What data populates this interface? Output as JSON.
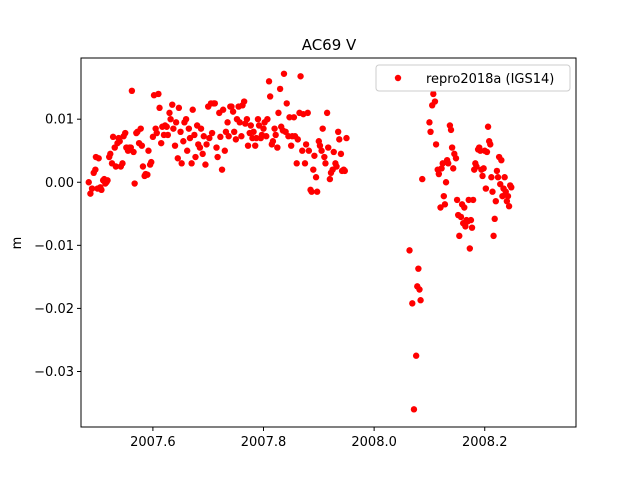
{
  "chart_data": {
    "type": "scatter",
    "title": "AC69 V",
    "xlabel": "",
    "ylabel": "m",
    "xlim": [
      2007.47,
      2008.365
    ],
    "ylim": [
      -0.0388,
      0.0197
    ],
    "x_ticks": [
      {
        "value": 2007.6,
        "label": "2007.6"
      },
      {
        "value": 2007.8,
        "label": "2007.8"
      },
      {
        "value": 2008.0,
        "label": "2008.0"
      },
      {
        "value": 2008.2,
        "label": "2008.2"
      }
    ],
    "y_ticks": [
      {
        "value": 0.01,
        "label": "0.01"
      },
      {
        "value": 0.0,
        "label": "0.00"
      },
      {
        "value": -0.01,
        "label": "−0.01"
      },
      {
        "value": -0.02,
        "label": "−0.02"
      },
      {
        "value": -0.03,
        "label": "−0.03"
      }
    ],
    "grid": false,
    "legend": {
      "placement": "top-right"
    },
    "series": [
      {
        "name": "repro2018a (IGS14)",
        "color": "#ff0000",
        "points": [
          [
            2007.484,
            0.0
          ],
          [
            2007.487,
            -0.0018
          ],
          [
            2007.49,
            -0.001
          ],
          [
            2007.493,
            0.0015
          ],
          [
            2007.496,
            0.002
          ],
          [
            2007.497,
            0.004
          ],
          [
            2007.5,
            -0.001
          ],
          [
            2007.502,
            0.0038
          ],
          [
            2007.505,
            -0.0008
          ],
          [
            2007.507,
            -0.0012
          ],
          [
            2007.51,
            0.0003
          ],
          [
            2007.512,
            0.0005
          ],
          [
            2007.514,
            -0.0002
          ],
          [
            2007.516,
            0.0
          ],
          [
            2007.518,
            0.0003
          ],
          [
            2007.521,
            0.004
          ],
          [
            2007.523,
            0.0045
          ],
          [
            2007.526,
            0.003
          ],
          [
            2007.528,
            0.0072
          ],
          [
            2007.531,
            0.0055
          ],
          [
            2007.533,
            0.0025
          ],
          [
            2007.536,
            0.0062
          ],
          [
            2007.538,
            0.007
          ],
          [
            2007.54,
            0.0065
          ],
          [
            2007.542,
            0.0025
          ],
          [
            2007.545,
            0.003
          ],
          [
            2007.547,
            0.0073
          ],
          [
            2007.55,
            0.0078
          ],
          [
            2007.552,
            0.0055
          ],
          [
            2007.555,
            0.005
          ],
          [
            2007.558,
            0.0055
          ],
          [
            2007.56,
            0.0055
          ],
          [
            2007.562,
            0.0145
          ],
          [
            2007.565,
            0.0048
          ],
          [
            2007.567,
            -0.0002
          ],
          [
            2007.57,
            0.0078
          ],
          [
            2007.572,
            0.008
          ],
          [
            2007.575,
            0.0062
          ],
          [
            2007.578,
            0.0085
          ],
          [
            2007.58,
            0.0058
          ],
          [
            2007.582,
            0.0025
          ],
          [
            2007.585,
            0.001
          ],
          [
            2007.587,
            0.0013
          ],
          [
            2007.59,
            0.0012
          ],
          [
            2007.592,
            0.005
          ],
          [
            2007.595,
            0.0028
          ],
          [
            2007.597,
            0.0032
          ],
          [
            2007.6,
            0.0072
          ],
          [
            2007.602,
            0.0138
          ],
          [
            2007.605,
            0.0085
          ],
          [
            2007.607,
            0.0078
          ],
          [
            2007.61,
            0.014
          ],
          [
            2007.612,
            0.0118
          ],
          [
            2007.615,
            0.0062
          ],
          [
            2007.617,
            0.0088
          ],
          [
            2007.62,
            0.0075
          ],
          [
            2007.622,
            0.009
          ],
          [
            2007.625,
            0.0088
          ],
          [
            2007.627,
            0.0075
          ],
          [
            2007.63,
            0.011
          ],
          [
            2007.632,
            0.01
          ],
          [
            2007.635,
            0.0123
          ],
          [
            2007.637,
            0.0085
          ],
          [
            2007.64,
            0.0058
          ],
          [
            2007.642,
            0.0095
          ],
          [
            2007.645,
            0.0038
          ],
          [
            2007.647,
            0.0118
          ],
          [
            2007.65,
            0.008
          ],
          [
            2007.652,
            0.003
          ],
          [
            2007.655,
            0.0065
          ],
          [
            2007.657,
            0.0095
          ],
          [
            2007.66,
            0.01
          ],
          [
            2007.662,
            0.005
          ],
          [
            2007.665,
            0.0085
          ],
          [
            2007.667,
            0.007
          ],
          [
            2007.67,
            0.003
          ],
          [
            2007.672,
            0.0115
          ],
          [
            2007.675,
            0.0075
          ],
          [
            2007.677,
            0.004
          ],
          [
            2007.68,
            0.009
          ],
          [
            2007.682,
            0.006
          ],
          [
            2007.685,
            0.0055
          ],
          [
            2007.687,
            0.0085
          ],
          [
            2007.69,
            0.0045
          ],
          [
            2007.692,
            0.0073
          ],
          [
            2007.695,
            0.0028
          ],
          [
            2007.697,
            0.006
          ],
          [
            2007.7,
            0.012
          ],
          [
            2007.702,
            0.007
          ],
          [
            2007.705,
            0.0125
          ],
          [
            2007.707,
            0.0078
          ],
          [
            2007.71,
            0.0125
          ],
          [
            2007.712,
            0.0125
          ],
          [
            2007.715,
            0.0055
          ],
          [
            2007.717,
            0.004
          ],
          [
            2007.72,
            0.011
          ],
          [
            2007.722,
            0.0072
          ],
          [
            2007.725,
            0.002
          ],
          [
            2007.727,
            0.0115
          ],
          [
            2007.73,
            0.005
          ],
          [
            2007.732,
            0.008
          ],
          [
            2007.735,
            0.0095
          ],
          [
            2007.737,
            0.0073
          ],
          [
            2007.74,
            0.012
          ],
          [
            2007.742,
            0.012
          ],
          [
            2007.745,
            0.0112
          ],
          [
            2007.747,
            0.008
          ],
          [
            2007.75,
            0.0068
          ],
          [
            2007.752,
            0.01
          ],
          [
            2007.755,
            0.012
          ],
          [
            2007.757,
            0.0095
          ],
          [
            2007.76,
            0.0073
          ],
          [
            2007.762,
            0.0122
          ],
          [
            2007.765,
            0.0128
          ],
          [
            2007.767,
            0.0093
          ],
          [
            2007.77,
            0.01
          ],
          [
            2007.772,
            0.0058
          ],
          [
            2007.775,
            0.0078
          ],
          [
            2007.777,
            0.009
          ],
          [
            2007.78,
            0.007
          ],
          [
            2007.782,
            0.008
          ],
          [
            2007.785,
            0.0058
          ],
          [
            2007.787,
            0.007
          ],
          [
            2007.79,
            0.01
          ],
          [
            2007.792,
            0.009
          ],
          [
            2007.795,
            0.007
          ],
          [
            2007.797,
            0.0075
          ],
          [
            2007.8,
            0.0085
          ],
          [
            2007.802,
            0.0095
          ],
          [
            2007.805,
            0.0073
          ],
          [
            2007.807,
            0.01
          ],
          [
            2007.81,
            0.016
          ],
          [
            2007.812,
            0.0136
          ],
          [
            2007.815,
            0.006
          ],
          [
            2007.817,
            0.0065
          ],
          [
            2007.82,
            0.0085
          ],
          [
            2007.822,
            0.0075
          ],
          [
            2007.825,
            0.0055
          ],
          [
            2007.827,
            0.011
          ],
          [
            2007.83,
            0.0148
          ],
          [
            2007.832,
            0.0088
          ],
          [
            2007.835,
            0.0082
          ],
          [
            2007.837,
            0.0172
          ],
          [
            2007.84,
            0.008
          ],
          [
            2007.842,
            0.0125
          ],
          [
            2007.845,
            0.0073
          ],
          [
            2007.847,
            0.0103
          ],
          [
            2007.85,
            0.0058
          ],
          [
            2007.852,
            0.0073
          ],
          [
            2007.855,
            0.0103
          ],
          [
            2007.857,
            0.0073
          ],
          [
            2007.86,
            0.003
          ],
          [
            2007.862,
            0.0068
          ],
          [
            2007.865,
            0.011
          ],
          [
            2007.867,
            0.0168
          ],
          [
            2007.87,
            0.005
          ],
          [
            2007.872,
            0.0108
          ],
          [
            2007.875,
            0.003
          ],
          [
            2007.877,
            0.006
          ],
          [
            2007.88,
            0.011
          ],
          [
            2007.882,
            0.005
          ],
          [
            2007.885,
            -0.0012
          ],
          [
            2007.887,
            -0.0015
          ],
          [
            2007.89,
            0.002
          ],
          [
            2007.892,
            0.0042
          ],
          [
            2007.895,
            0.0008
          ],
          [
            2007.897,
            -0.0015
          ],
          [
            2007.9,
            0.0065
          ],
          [
            2007.902,
            0.0058
          ],
          [
            2007.905,
            0.005
          ],
          [
            2007.907,
            0.0085
          ],
          [
            2007.91,
            0.004
          ],
          [
            2007.912,
            0.003
          ],
          [
            2007.915,
            0.011
          ],
          [
            2007.917,
            0.0055
          ],
          [
            2007.92,
            0.0005
          ],
          [
            2007.922,
            0.0015
          ],
          [
            2007.925,
            0.002
          ],
          [
            2007.927,
            0.0048
          ],
          [
            2007.93,
            0.003
          ],
          [
            2007.932,
            0.0025
          ],
          [
            2007.935,
            0.008
          ],
          [
            2007.937,
            0.0068
          ],
          [
            2007.94,
            0.0045
          ],
          [
            2007.942,
            0.0018
          ],
          [
            2007.945,
            0.002
          ],
          [
            2007.947,
            0.0018
          ],
          [
            2007.95,
            0.007
          ],
          [
            2008.064,
            -0.0108
          ],
          [
            2008.069,
            -0.0192
          ],
          [
            2008.072,
            -0.036
          ],
          [
            2008.076,
            -0.0275
          ],
          [
            2008.078,
            -0.0165
          ],
          [
            2008.08,
            -0.0137
          ],
          [
            2008.082,
            -0.017
          ],
          [
            2008.084,
            -0.0187
          ],
          [
            2008.087,
            0.0005
          ],
          [
            2008.1,
            0.0095
          ],
          [
            2008.102,
            0.008
          ],
          [
            2008.105,
            0.0122
          ],
          [
            2008.107,
            0.014
          ],
          [
            2008.11,
            0.0128
          ],
          [
            2008.112,
            0.006
          ],
          [
            2008.115,
            0.002
          ],
          [
            2008.117,
            0.0013
          ],
          [
            2008.12,
            -0.004
          ],
          [
            2008.122,
            0.0022
          ],
          [
            2008.124,
            0.003
          ],
          [
            2008.126,
            -0.0022
          ],
          [
            2008.128,
            -0.0035
          ],
          [
            2008.13,
            0.0
          ],
          [
            2008.132,
            0.0035
          ],
          [
            2008.134,
            0.003
          ],
          [
            2008.137,
            0.009
          ],
          [
            2008.139,
            0.0083
          ],
          [
            2008.141,
            0.0055
          ],
          [
            2008.143,
            0.0022
          ],
          [
            2008.145,
            0.0045
          ],
          [
            2008.148,
            0.0038
          ],
          [
            2008.15,
            -0.0028
          ],
          [
            2008.152,
            -0.0052
          ],
          [
            2008.154,
            -0.0085
          ],
          [
            2008.157,
            -0.0055
          ],
          [
            2008.159,
            -0.0035
          ],
          [
            2008.161,
            -0.0065
          ],
          [
            2008.163,
            -0.004
          ],
          [
            2008.165,
            -0.007
          ],
          [
            2008.167,
            -0.006
          ],
          [
            2008.169,
            -0.0062
          ],
          [
            2008.171,
            -0.0028
          ],
          [
            2008.173,
            -0.0105
          ],
          [
            2008.175,
            -0.006
          ],
          [
            2008.177,
            -0.0072
          ],
          [
            2008.179,
            -0.0028
          ],
          [
            2008.181,
            0.002
          ],
          [
            2008.183,
            0.003
          ],
          [
            2008.185,
            0.0025
          ],
          [
            2008.188,
            0.0052
          ],
          [
            2008.19,
            0.0055
          ],
          [
            2008.192,
            0.005
          ],
          [
            2008.194,
            0.002
          ],
          [
            2008.196,
            0.001
          ],
          [
            2008.198,
            0.0022
          ],
          [
            2008.2,
            0.005
          ],
          [
            2008.202,
            -0.001
          ],
          [
            2008.204,
            0.0048
          ],
          [
            2008.206,
            0.0088
          ],
          [
            2008.208,
            0.0065
          ],
          [
            2008.21,
            0.006
          ],
          [
            2008.212,
            0.0008
          ],
          [
            2008.214,
            -0.0015
          ],
          [
            2008.216,
            -0.0085
          ],
          [
            2008.218,
            -0.0058
          ],
          [
            2008.22,
            -0.003
          ],
          [
            2008.222,
            0.0018
          ],
          [
            2008.224,
            0.0008
          ],
          [
            2008.226,
            0.004
          ],
          [
            2008.228,
            -0.0003
          ],
          [
            2008.23,
            0.0035
          ],
          [
            2008.232,
            -0.0022
          ],
          [
            2008.234,
            -0.001
          ],
          [
            2008.236,
            0.0008
          ],
          [
            2008.238,
            -0.0015
          ],
          [
            2008.24,
            -0.003
          ],
          [
            2008.242,
            -0.0022
          ],
          [
            2008.244,
            -0.0038
          ],
          [
            2008.246,
            -0.0005
          ],
          [
            2008.248,
            -0.0008
          ]
        ]
      }
    ]
  }
}
